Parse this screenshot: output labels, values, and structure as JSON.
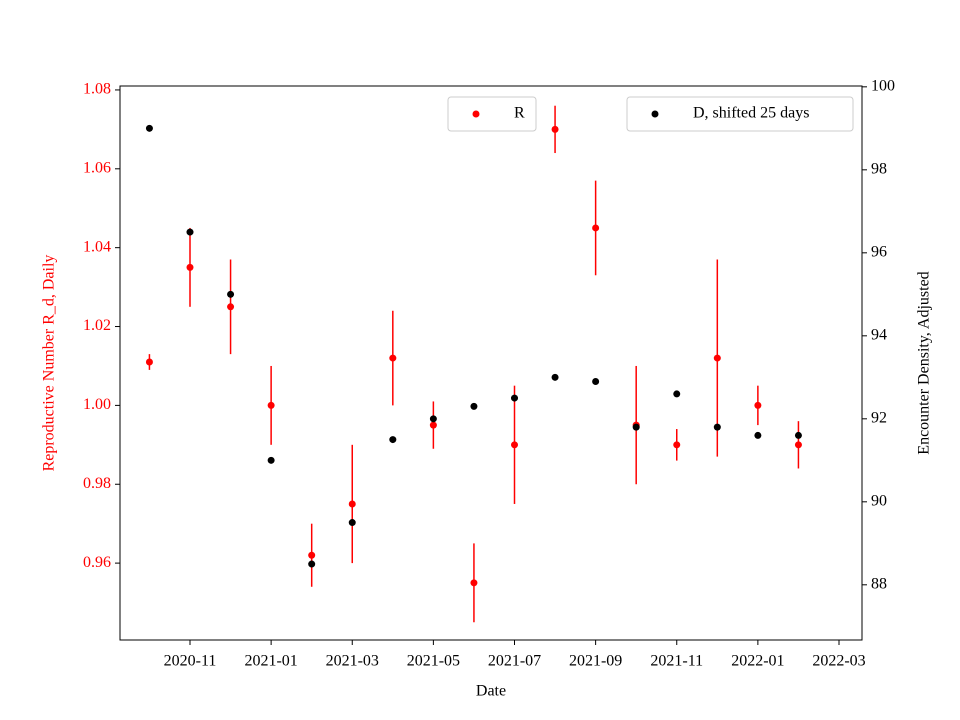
{
  "chart_data": {
    "type": "scatter",
    "x_label": "Date",
    "y_label": "Reproductive Number R_d, Daily",
    "y2_label": "Encounter Density, Adjusted",
    "x": [
      "2020-10",
      "2020-11",
      "2020-12",
      "2021-01",
      "2021-02",
      "2021-03",
      "2021-04",
      "2021-05",
      "2021-06",
      "2021-07",
      "2021-08",
      "2021-09",
      "2021-10",
      "2021-11",
      "2021-12",
      "2022-01",
      "2022-02"
    ],
    "xticks": [
      "2020-11",
      "2021-01",
      "2021-03",
      "2021-05",
      "2021-07",
      "2021-09",
      "2021-11",
      "2022-01",
      "2022-03"
    ],
    "ylim": [
      0.9405,
      1.081
    ],
    "yticks": [
      0.96,
      0.98,
      {
        "value": 1.0,
        "label": "1.00"
      },
      1.02,
      1.04,
      1.06,
      1.08
    ],
    "y2lim": [
      86.67,
      100.02
    ],
    "y2ticks": [
      88,
      90,
      92,
      94,
      96,
      98,
      100
    ],
    "series": [
      {
        "name": "R",
        "color": "#ff0000",
        "values": [
          1.011,
          1.035,
          1.025,
          1.0,
          0.962,
          0.975,
          1.012,
          0.995,
          0.955,
          0.99,
          1.07,
          1.045,
          0.995,
          0.99,
          1.012,
          1.0,
          0.99
        ],
        "errors": [
          0.002,
          0.01,
          0.012,
          0.01,
          0.008,
          0.015,
          0.012,
          0.006,
          0.01,
          0.015,
          0.006,
          0.012,
          0.015,
          0.004,
          0.025,
          0.005,
          0.006
        ]
      },
      {
        "name": "D, shifted 25 days",
        "color": "#000000",
        "axis": "y2",
        "values": [
          99.0,
          96.5,
          95.0,
          91.0,
          88.5,
          89.5,
          91.5,
          92.0,
          92.3,
          92.5,
          93.0,
          92.9,
          91.8,
          92.6,
          91.8,
          91.6,
          91.6
        ]
      }
    ]
  }
}
